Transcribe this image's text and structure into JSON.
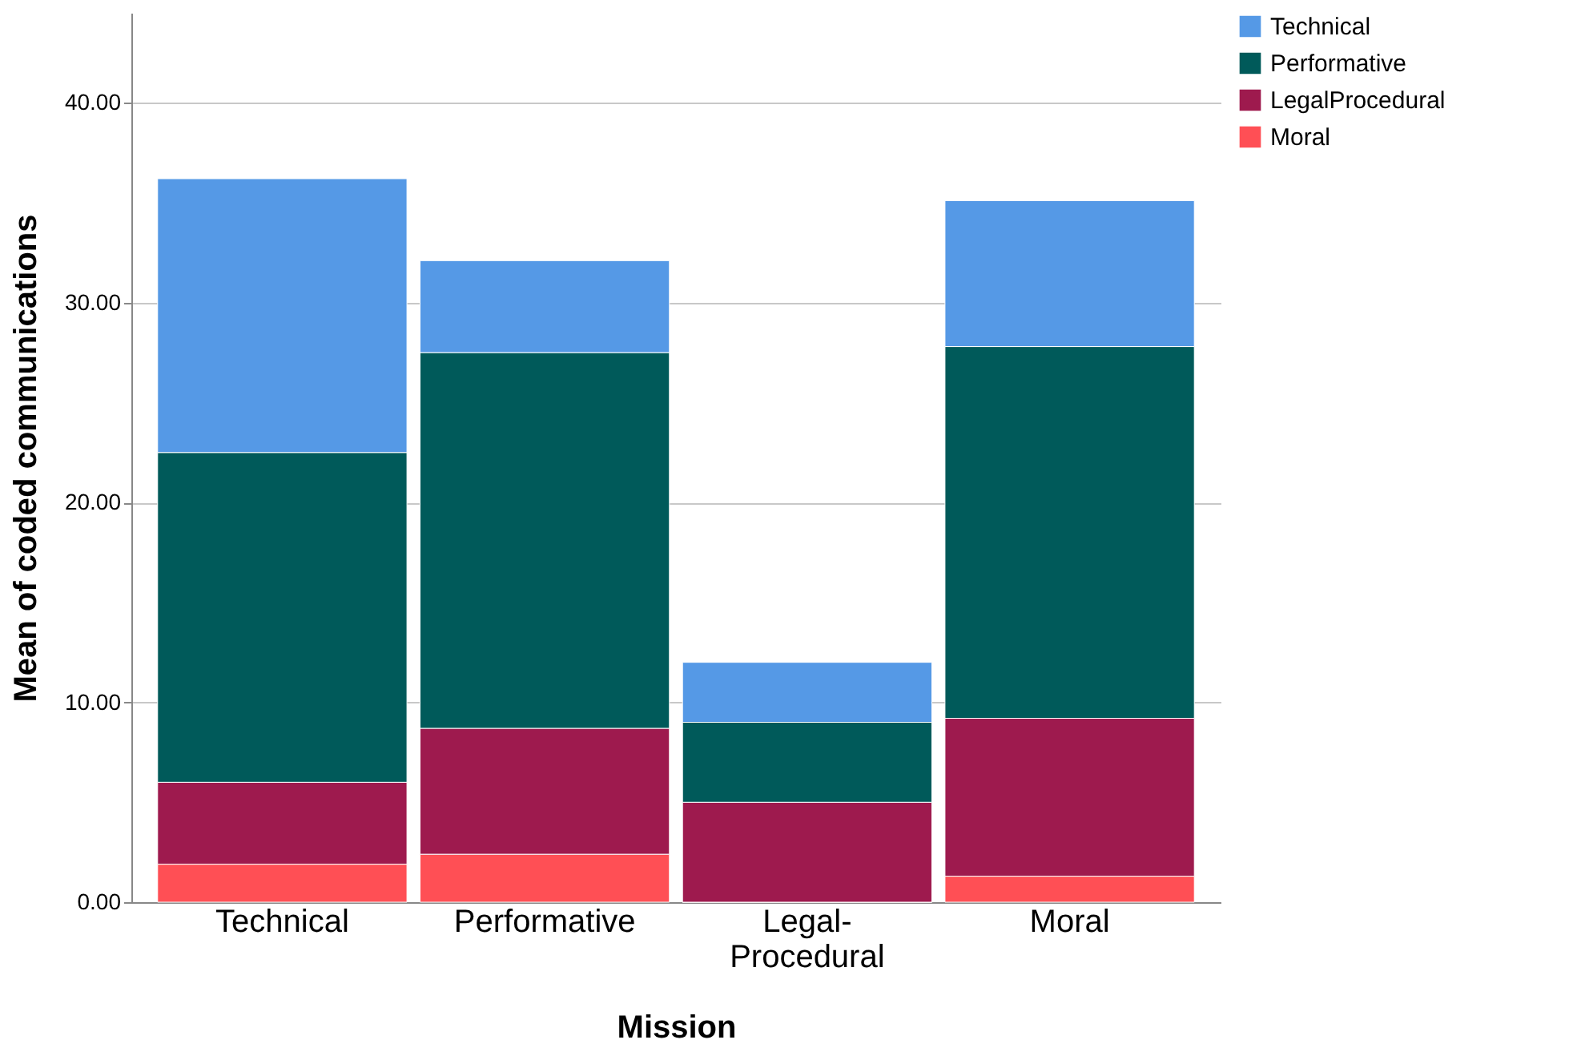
{
  "chart_data": {
    "type": "bar",
    "stacked": true,
    "xlabel": "Mission",
    "ylabel": "Mean of coded communications",
    "categories": [
      "Technical",
      "Performative",
      "Legal-Procedural",
      "Moral"
    ],
    "series": [
      {
        "name": "Moral",
        "color": "#ff4f55",
        "values": [
          1.9,
          2.4,
          0,
          1.3
        ]
      },
      {
        "name": "LegalProcedural",
        "color": "#9e1a4e",
        "values": [
          4.1,
          6.3,
          5.0,
          7.9
        ]
      },
      {
        "name": "Performative",
        "color": "#005a5a",
        "values": [
          16.5,
          18.8,
          4.0,
          18.6
        ]
      },
      {
        "name": "Technical",
        "color": "#5599e6",
        "values": [
          13.7,
          4.6,
          3.0,
          7.3
        ]
      }
    ],
    "ylim": [
      0,
      44.5
    ],
    "yticks": [
      {
        "value": 0,
        "label": "0.00"
      },
      {
        "value": 10,
        "label": "10.00"
      },
      {
        "value": 20,
        "label": "20.00"
      },
      {
        "value": 30,
        "label": "30.00"
      },
      {
        "value": 40,
        "label": "40.00"
      }
    ],
    "grid": "y",
    "legend": "top right"
  }
}
